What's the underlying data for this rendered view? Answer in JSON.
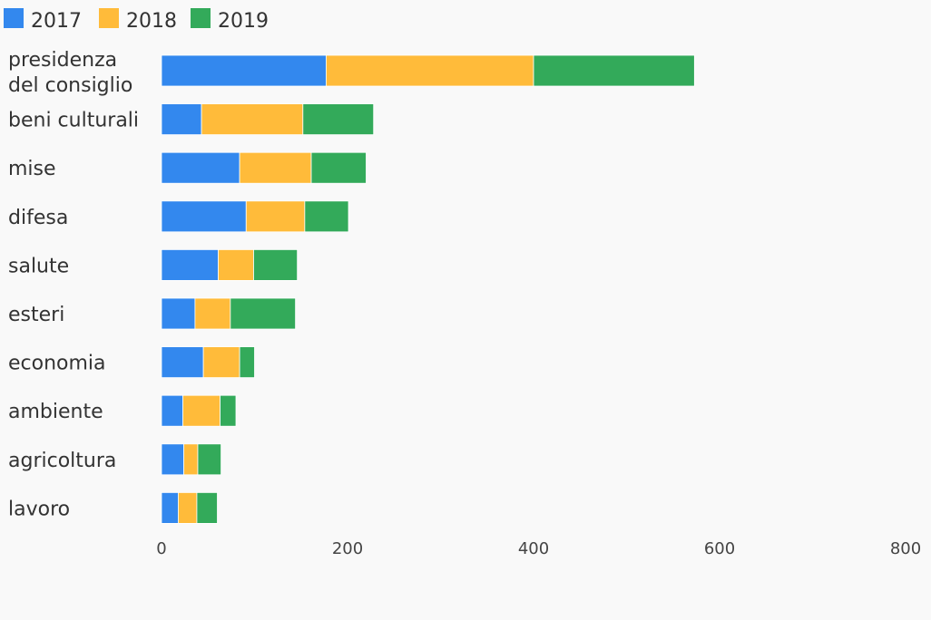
{
  "chart_data": {
    "type": "bar",
    "orientation": "horizontal",
    "stacked": true,
    "categories": [
      "presidenza\ndel consiglio",
      "beni culturali",
      "mise",
      "difesa",
      "salute",
      "esteri",
      "economia",
      "ambiente",
      "agricoltura",
      "lavoro"
    ],
    "series": [
      {
        "name": "2017",
        "color": "#3388ee",
        "values": [
          177,
          43,
          84,
          91,
          61,
          36,
          45,
          23,
          24,
          18
        ]
      },
      {
        "name": "2018",
        "color": "#ffbb3a",
        "values": [
          223,
          109,
          77,
          63,
          38,
          38,
          39,
          40,
          15,
          20
        ]
      },
      {
        "name": "2019",
        "color": "#33aa5a",
        "values": [
          173,
          76,
          59,
          47,
          47,
          70,
          16,
          17,
          25,
          22
        ]
      }
    ],
    "xlim": [
      0,
      800
    ],
    "xticks": [
      0,
      200,
      400,
      600,
      800
    ],
    "legend_position": "top-left",
    "grid": false
  }
}
